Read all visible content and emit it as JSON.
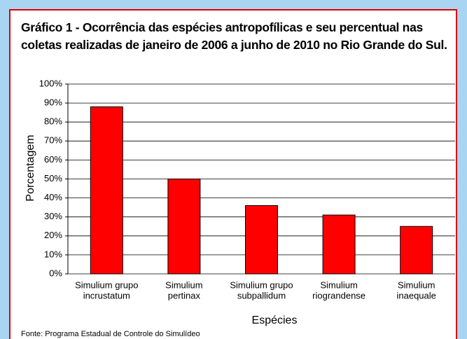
{
  "chart_data": {
    "type": "bar",
    "title": "Gráfico 1 - Ocorrência das espécies antropofílicas e seu percentual nas coletas realizadas de janeiro de 2006 a junho de 2010 no Rio Grande do Sul.",
    "categories": [
      [
        "Simulium grupo",
        "incrustatum"
      ],
      [
        "Simulium",
        "pertinax"
      ],
      [
        "Simulium grupo",
        "subpallidum"
      ],
      [
        "Simulium",
        "riograndense"
      ],
      [
        "Simulium",
        "inaequale"
      ]
    ],
    "values": [
      88,
      50,
      36,
      31,
      25
    ],
    "color": "#ff0000",
    "ylim": [
      0,
      100
    ],
    "yticks": [
      {
        "value": 0,
        "label": "0%"
      },
      {
        "value": 10,
        "label": "10%"
      },
      {
        "value": 20,
        "label": "20%"
      },
      {
        "value": 30,
        "label": "30%"
      },
      {
        "value": 40,
        "label": "40%"
      },
      {
        "value": 50,
        "label": "50%"
      },
      {
        "value": 60,
        "label": "60%"
      },
      {
        "value": 70,
        "label": "70%"
      },
      {
        "value": 80,
        "label": "80%"
      },
      {
        "value": 90,
        "label": "90%"
      },
      {
        "value": 100,
        "label": "100%"
      }
    ],
    "grid": true,
    "y_label": "Porcentagem",
    "x_label": "Espécies",
    "source": "Fonte: Programa Estadual de Controle do Simulídeo"
  }
}
